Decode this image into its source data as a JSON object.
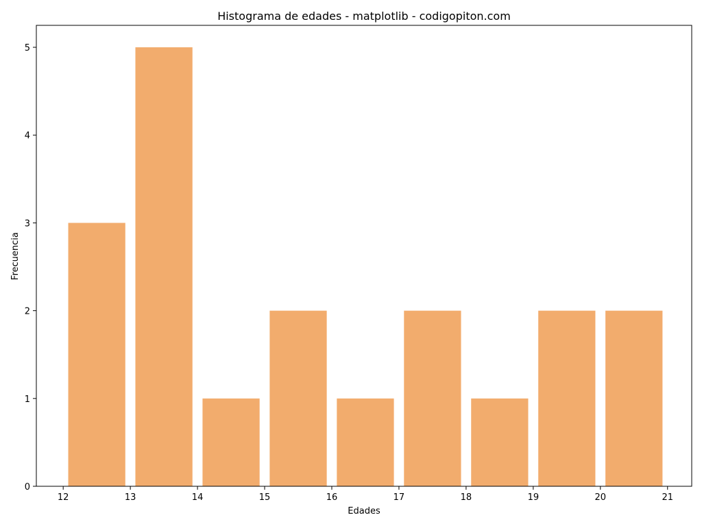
{
  "chart_data": {
    "type": "bar",
    "title": "Histograma de edades - matplotlib - codigopiton.com",
    "xlabel": "Edades",
    "ylabel": "Frecuencia",
    "bins": [
      [
        12,
        13
      ],
      [
        13,
        14
      ],
      [
        14,
        15
      ],
      [
        15,
        16
      ],
      [
        16,
        17
      ],
      [
        17,
        18
      ],
      [
        18,
        19
      ],
      [
        19,
        20
      ],
      [
        20,
        21
      ]
    ],
    "values": [
      3,
      5,
      1,
      2,
      1,
      2,
      1,
      2,
      2
    ],
    "xlim": [
      11.6,
      21.36
    ],
    "ylim": [
      0,
      5.25
    ],
    "xticks": [
      12,
      13,
      14,
      15,
      16,
      17,
      18,
      19,
      20,
      21
    ],
    "yticks": [
      0,
      1,
      2,
      3,
      4,
      5
    ],
    "bar_color": "#f2ac6d",
    "bar_width_fraction": 0.85,
    "grid": false,
    "legend": false
  }
}
